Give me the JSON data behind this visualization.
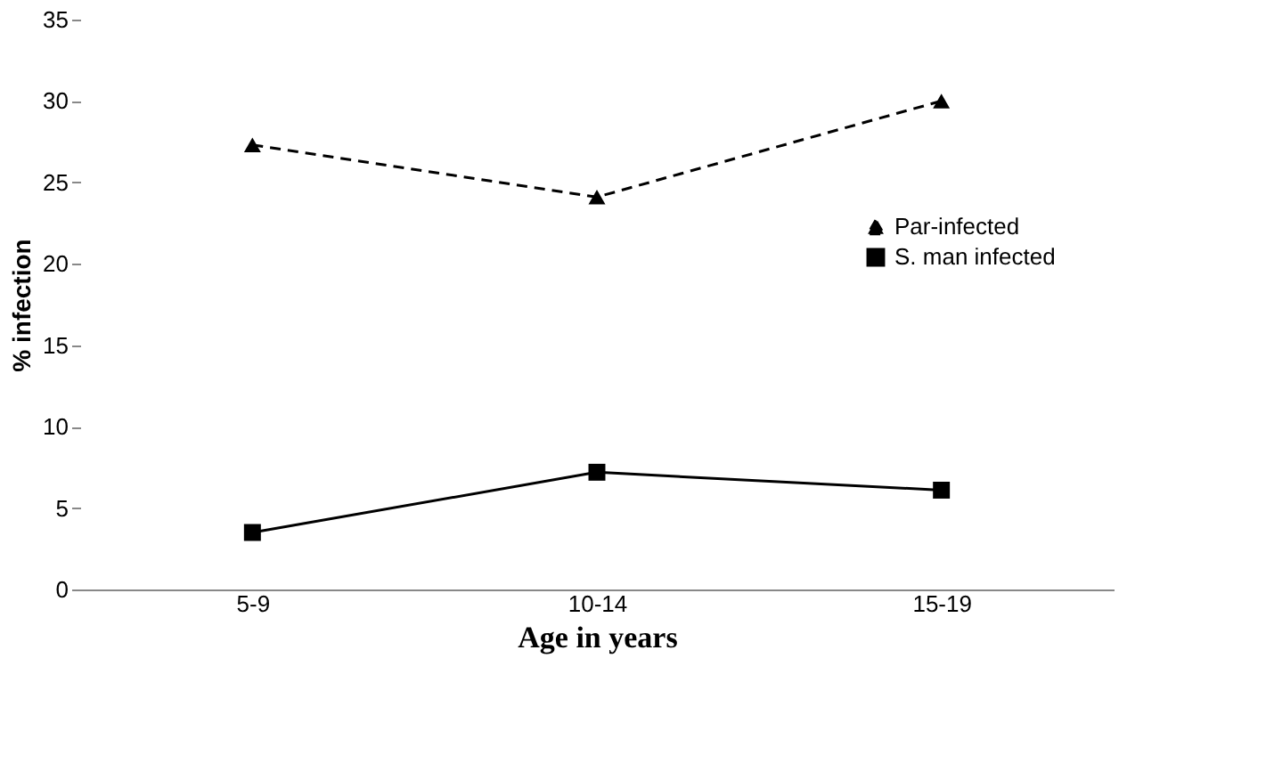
{
  "chart_data": {
    "type": "line",
    "xlabel": "Age in years",
    "ylabel": "% infection",
    "categories": [
      "5-9",
      "10-14",
      "15-19"
    ],
    "series": [
      {
        "name": "Par-infected",
        "color": "#000000",
        "values": [
          27.3,
          24.1,
          30.0
        ],
        "marker": "triangle",
        "line_style": "dashed"
      },
      {
        "name": "S. man infected",
        "color": "#000000",
        "values": [
          3.5,
          7.2,
          6.1
        ],
        "marker": "square",
        "line_style": "solid"
      }
    ],
    "ylim": [
      0,
      35
    ],
    "yticks": [
      0,
      5,
      10,
      15,
      20,
      25,
      30,
      35
    ],
    "grid": false,
    "legend": "right"
  }
}
